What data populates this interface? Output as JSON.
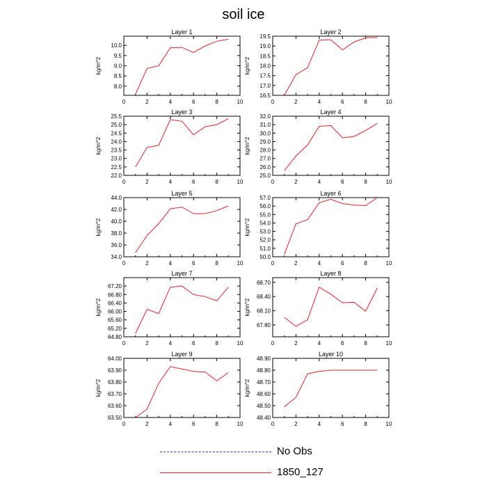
{
  "title": "soil ice",
  "chart_data": [
    {
      "type": "line",
      "title": "Layer 1",
      "ylabel": "kg/m^2",
      "xlim": [
        0,
        10
      ],
      "ylim": [
        7.55,
        10.45
      ],
      "xticks": [
        0,
        2,
        4,
        6,
        8,
        10
      ],
      "yticks": [
        "8.0",
        "8.5",
        "9.0",
        "9.5",
        "10.0"
      ],
      "x": [
        1,
        2,
        3,
        4,
        5,
        6,
        7,
        8,
        9
      ],
      "values": [
        7.6,
        8.87,
        9.0,
        9.88,
        9.9,
        9.65,
        9.97,
        10.2,
        10.3
      ]
    },
    {
      "type": "line",
      "title": "Layer 2",
      "ylabel": "kg/m^2",
      "xlim": [
        0,
        10
      ],
      "ylim": [
        16.5,
        19.5
      ],
      "xticks": [
        0,
        2,
        4,
        6,
        8,
        10
      ],
      "yticks": [
        "16.5",
        "17.0",
        "17.5",
        "18.0",
        "18.5",
        "19.0",
        "19.5"
      ],
      "x": [
        1,
        2,
        3,
        4,
        5,
        6,
        7,
        8,
        9
      ],
      "values": [
        16.5,
        17.55,
        17.9,
        19.3,
        19.32,
        18.8,
        19.2,
        19.42,
        19.43
      ]
    },
    {
      "type": "line",
      "title": "Layer 3",
      "ylabel": "kg/m^2",
      "xlim": [
        0,
        10
      ],
      "ylim": [
        22.0,
        25.5
      ],
      "xticks": [
        0,
        2,
        4,
        6,
        8,
        10
      ],
      "yticks": [
        "22.0",
        "22.5",
        "23.0",
        "23.5",
        "24.0",
        "24.5",
        "25.0",
        "25.5"
      ],
      "x": [
        1,
        2,
        3,
        4,
        5,
        6,
        7,
        8,
        9
      ],
      "values": [
        22.5,
        23.65,
        23.78,
        25.3,
        25.2,
        24.4,
        24.88,
        25.0,
        25.35
      ]
    },
    {
      "type": "line",
      "title": "Layer 4",
      "ylabel": "kg/m^2",
      "xlim": [
        0,
        10
      ],
      "ylim": [
        25.0,
        32.0
      ],
      "xticks": [
        0,
        2,
        4,
        6,
        8,
        10
      ],
      "yticks": [
        "25.0",
        "26.0",
        "27.0",
        "28.0",
        "29.0",
        "30.0",
        "31.0",
        "32.0"
      ],
      "x": [
        1,
        2,
        3,
        4,
        5,
        6,
        7,
        8,
        9
      ],
      "values": [
        25.55,
        27.3,
        28.6,
        30.8,
        30.9,
        29.45,
        29.6,
        30.3,
        31.15
      ]
    },
    {
      "type": "line",
      "title": "Layer 5",
      "ylabel": "kg/m^2",
      "xlim": [
        0,
        10
      ],
      "ylim": [
        34.0,
        44.0
      ],
      "xticks": [
        0,
        2,
        4,
        6,
        8,
        10
      ],
      "yticks": [
        "34.0",
        "36.0",
        "38.0",
        "40.0",
        "42.0",
        "44.0"
      ],
      "x": [
        1,
        2,
        3,
        4,
        5,
        6,
        7,
        8,
        9
      ],
      "values": [
        34.7,
        37.6,
        39.6,
        42.1,
        42.4,
        41.3,
        41.3,
        41.8,
        42.6
      ]
    },
    {
      "type": "line",
      "title": "Layer 6",
      "ylabel": "kg/m^2",
      "xlim": [
        0,
        10
      ],
      "ylim": [
        50.0,
        57.0
      ],
      "xticks": [
        0,
        2,
        4,
        6,
        8,
        10
      ],
      "yticks": [
        "50.0",
        "51.0",
        "52.0",
        "53.0",
        "54.0",
        "55.0",
        "56.0",
        "57.0"
      ],
      "x": [
        1,
        2,
        3,
        4,
        5,
        6,
        7,
        8,
        9
      ],
      "values": [
        50.3,
        53.9,
        54.4,
        56.4,
        56.8,
        56.3,
        56.1,
        56.05,
        57.0
      ]
    },
    {
      "type": "line",
      "title": "Layer 7",
      "ylabel": "kg/m^2",
      "xlim": [
        0,
        10
      ],
      "ylim": [
        64.8,
        67.6
      ],
      "xticks": [
        0,
        2,
        4,
        6,
        8,
        10
      ],
      "yticks": [
        "64.80",
        "65.20",
        "65.60",
        "66.00",
        "66.40",
        "66.80",
        "67.20"
      ],
      "x": [
        1,
        2,
        3,
        4,
        5,
        6,
        7,
        8,
        9
      ],
      "values": [
        64.95,
        66.1,
        65.9,
        67.15,
        67.2,
        66.8,
        66.7,
        66.5,
        67.15
      ]
    },
    {
      "type": "line",
      "title": "Layer 8",
      "ylabel": "kg/m^2",
      "xlim": [
        0,
        10
      ],
      "ylim": [
        67.55,
        68.8
      ],
      "xticks": [
        0,
        2,
        4,
        6,
        8,
        10
      ],
      "yticks": [
        "67.80",
        "68.10",
        "68.40",
        "68.70"
      ],
      "x": [
        1,
        2,
        3,
        4,
        5,
        6,
        7,
        8,
        9
      ],
      "values": [
        67.96,
        67.77,
        67.91,
        68.6,
        68.45,
        68.27,
        68.28,
        68.09,
        68.58
      ]
    },
    {
      "type": "line",
      "title": "Layer 9",
      "ylabel": "kg/m^2",
      "xlim": [
        0,
        10
      ],
      "ylim": [
        63.5,
        64.0
      ],
      "xticks": [
        0,
        2,
        4,
        6,
        8,
        10
      ],
      "yticks": [
        "63.50",
        "63.60",
        "63.70",
        "63.80",
        "63.90",
        "64.00"
      ],
      "x": [
        1,
        2,
        3,
        4,
        5,
        6,
        7,
        8,
        9
      ],
      "values": [
        63.5,
        63.57,
        63.79,
        63.93,
        63.91,
        63.89,
        63.885,
        63.81,
        63.88
      ]
    },
    {
      "type": "line",
      "title": "Layer 10",
      "ylabel": "kg/m^2",
      "xlim": [
        0,
        10
      ],
      "ylim": [
        48.4,
        48.9
      ],
      "xticks": [
        0,
        2,
        4,
        6,
        8,
        10
      ],
      "yticks": [
        "48.40",
        "48.50",
        "48.60",
        "48.70",
        "48.80",
        "48.90"
      ],
      "x": [
        1,
        2,
        3,
        4,
        5,
        6,
        7,
        8,
        9
      ],
      "values": [
        48.49,
        48.57,
        48.77,
        48.79,
        48.8,
        48.8,
        48.8,
        48.8,
        48.8
      ]
    }
  ],
  "legend": [
    {
      "label": "No Obs",
      "color": "#3333cc",
      "style": "dashed"
    },
    {
      "label": "1850_127",
      "color": "#e8202a",
      "style": "solid"
    }
  ],
  "line_color": "#e8202a"
}
